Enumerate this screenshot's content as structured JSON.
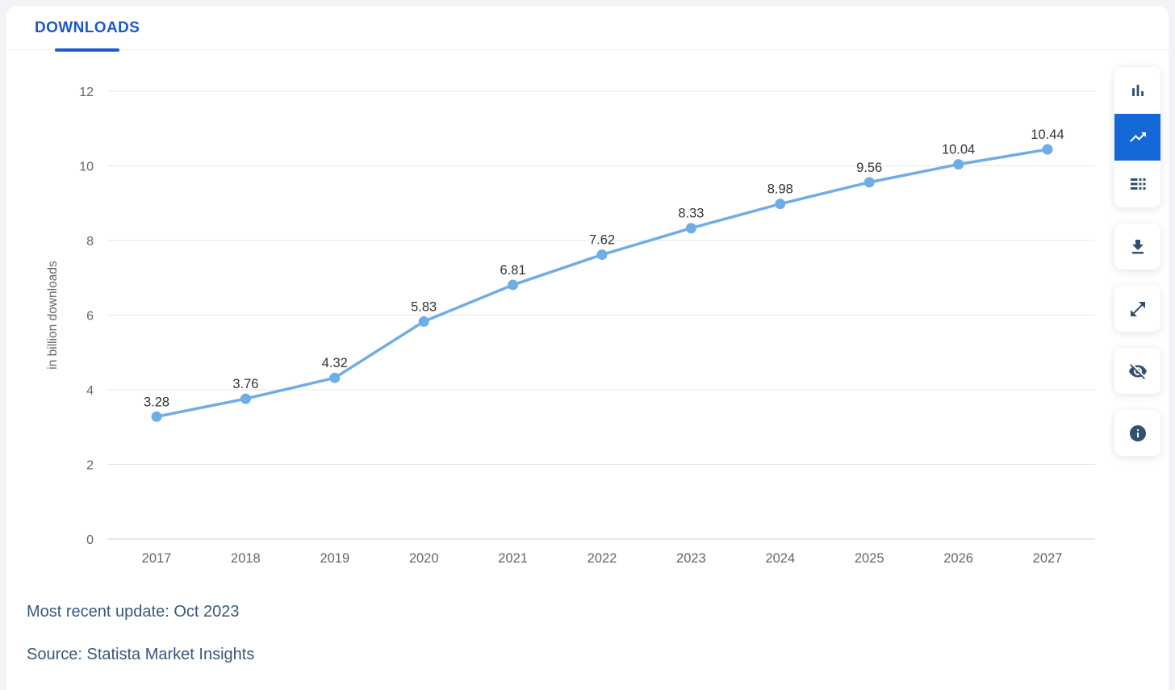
{
  "header": {
    "tab_label": "DOWNLOADS"
  },
  "chart_data": {
    "type": "line",
    "title": "",
    "categories": [
      "2017",
      "2018",
      "2019",
      "2020",
      "2021",
      "2022",
      "2023",
      "2024",
      "2025",
      "2026",
      "2027"
    ],
    "values": [
      3.28,
      3.76,
      4.32,
      5.83,
      6.81,
      7.62,
      8.33,
      8.98,
      9.56,
      10.04,
      10.44
    ],
    "data_labels": [
      "3.28",
      "3.76",
      "4.32",
      "5.83",
      "6.81",
      "7.62",
      "8.33",
      "8.98",
      "9.56",
      "10.04",
      "10.44"
    ],
    "xlabel": "",
    "ylabel": "in billion downloads",
    "ylim": [
      0,
      12
    ],
    "yticks": [
      0,
      2,
      4,
      6,
      8,
      10,
      12
    ],
    "grid": true,
    "legend": "none",
    "series_name": "Downloads"
  },
  "toolbar": {
    "chart_type_buttons": [
      {
        "icon": "bar-chart-icon",
        "active": false
      },
      {
        "icon": "line-chart-icon",
        "active": true
      },
      {
        "icon": "table-icon",
        "active": false
      }
    ],
    "action_buttons": [
      {
        "icon": "download-icon"
      },
      {
        "icon": "expand-icon"
      },
      {
        "icon": "hide-labels-icon"
      },
      {
        "icon": "info-icon"
      }
    ]
  },
  "footer": {
    "updated": "Most recent update: Oct 2023",
    "source": "Source: Statista Market Insights"
  },
  "colors": {
    "accent_blue": "#1c58d2",
    "active_button_blue": "#1568d7",
    "icon_navy": "#33516f",
    "line_blue": "#6fade6",
    "marker_blue": "#6fade6",
    "grid": "#e7e7e7",
    "axis_line": "#ccd1d8",
    "tick_text": "#666666",
    "data_label": "#333333",
    "footer_text": "#39587a"
  }
}
